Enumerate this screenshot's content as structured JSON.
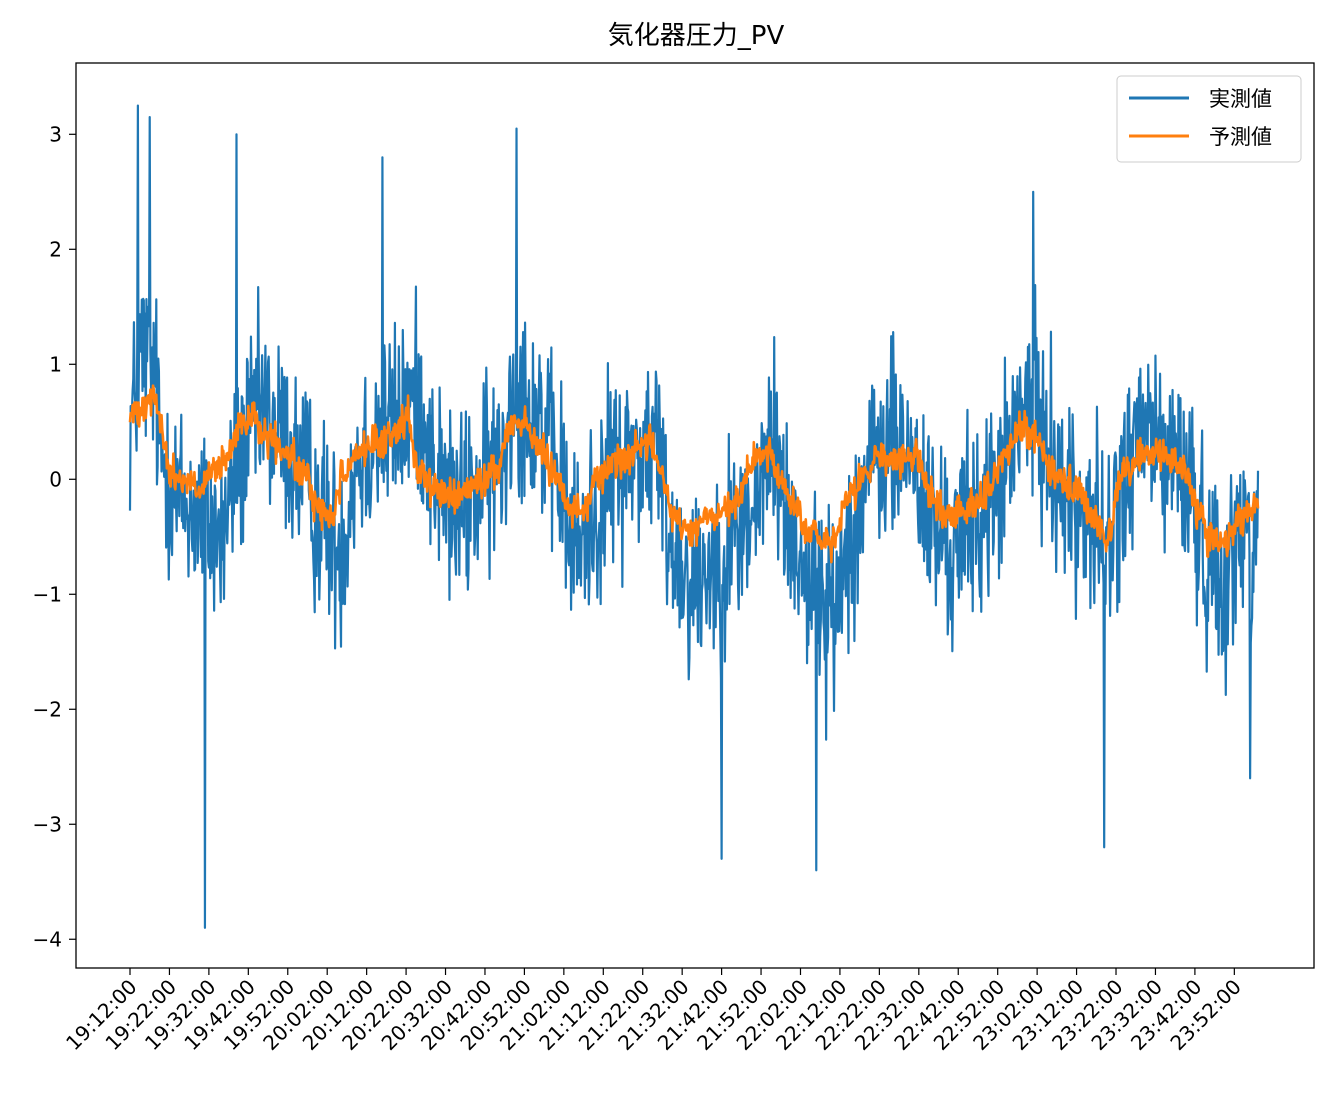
{
  "chart_data": {
    "type": "line",
    "title": "気化器圧力_PV",
    "xlabel": "",
    "ylabel": "",
    "x_range": [
      "19:12:00",
      "23:58:00"
    ],
    "sample_interval_seconds": 10,
    "ylim": [
      -4.25,
      3.62
    ],
    "yticks": [
      3,
      2,
      1,
      0,
      -1,
      -2,
      -3,
      -4
    ],
    "ytick_labels": [
      "3",
      "2",
      "1",
      "0",
      "−1",
      "−2",
      "−3",
      "−4"
    ],
    "xtick_labels": [
      "19:12:00",
      "19:22:00",
      "19:32:00",
      "19:42:00",
      "19:52:00",
      "20:02:00",
      "20:12:00",
      "20:22:00",
      "20:32:00",
      "20:42:00",
      "20:52:00",
      "21:02:00",
      "21:12:00",
      "21:22:00",
      "21:32:00",
      "21:42:00",
      "21:52:00",
      "22:02:00",
      "22:12:00",
      "22:22:00",
      "22:32:00",
      "22:42:00",
      "22:52:00",
      "23:02:00",
      "23:12:00",
      "23:22:00",
      "23:32:00",
      "23:42:00",
      "23:52:00"
    ],
    "grid": false,
    "legend_position": "top-right",
    "series": [
      {
        "name": "実測値",
        "color": "#1f77b4",
        "trend_points": [
          [
            "19:12:00",
            0.5
          ],
          [
            "19:15:00",
            1.1
          ],
          [
            "19:18:00",
            0.9
          ],
          [
            "19:20:00",
            0.2
          ],
          [
            "19:25:00",
            -0.2
          ],
          [
            "19:30:00",
            -0.3
          ],
          [
            "19:35:00",
            -0.5
          ],
          [
            "19:40:00",
            0.2
          ],
          [
            "19:45:00",
            0.6
          ],
          [
            "19:50:00",
            0.4
          ],
          [
            "19:55:00",
            0.1
          ],
          [
            "20:00:00",
            -0.3
          ],
          [
            "20:05:00",
            -0.6
          ],
          [
            "20:10:00",
            0.2
          ],
          [
            "20:15:00",
            0.4
          ],
          [
            "20:20:00",
            0.5
          ],
          [
            "20:25:00",
            0.7
          ],
          [
            "20:30:00",
            0.0
          ],
          [
            "20:35:00",
            -0.3
          ],
          [
            "20:40:00",
            -0.1
          ],
          [
            "20:45:00",
            0.1
          ],
          [
            "20:50:00",
            0.8
          ],
          [
            "20:55:00",
            0.6
          ],
          [
            "21:00:00",
            0.1
          ],
          [
            "21:05:00",
            -0.6
          ],
          [
            "21:10:00",
            -0.3
          ],
          [
            "21:15:00",
            0.1
          ],
          [
            "21:20:00",
            0.2
          ],
          [
            "21:25:00",
            0.3
          ],
          [
            "21:30:00",
            -0.6
          ],
          [
            "21:35:00",
            -0.9
          ],
          [
            "21:40:00",
            -0.7
          ],
          [
            "21:45:00",
            -0.5
          ],
          [
            "21:50:00",
            -0.3
          ],
          [
            "21:55:00",
            0.3
          ],
          [
            "22:00:00",
            -0.5
          ],
          [
            "22:05:00",
            -0.9
          ],
          [
            "22:10:00",
            -1.2
          ],
          [
            "22:15:00",
            -0.4
          ],
          [
            "22:20:00",
            0.1
          ],
          [
            "22:25:00",
            0.3
          ],
          [
            "22:30:00",
            0.2
          ],
          [
            "22:35:00",
            -0.4
          ],
          [
            "22:40:00",
            -0.6
          ],
          [
            "22:45:00",
            -0.4
          ],
          [
            "22:50:00",
            -0.2
          ],
          [
            "22:55:00",
            0.2
          ],
          [
            "23:00:00",
            0.7
          ],
          [
            "23:05:00",
            0.3
          ],
          [
            "23:10:00",
            -0.2
          ],
          [
            "23:15:00",
            -0.3
          ],
          [
            "23:20:00",
            -0.6
          ],
          [
            "23:25:00",
            0.1
          ],
          [
            "23:30:00",
            0.4
          ],
          [
            "23:35:00",
            0.2
          ],
          [
            "23:40:00",
            0.0
          ],
          [
            "23:45:00",
            -0.7
          ],
          [
            "23:50:00",
            -0.8
          ],
          [
            "23:55:00",
            -0.4
          ],
          [
            "23:58:00",
            -0.5
          ]
        ],
        "noise_amplitude": 0.9,
        "extremes": [
          [
            "19:14:00",
            3.25
          ],
          [
            "19:17:00",
            3.15
          ],
          [
            "19:31:00",
            -3.9
          ],
          [
            "19:39:00",
            3.0
          ],
          [
            "20:16:00",
            2.8
          ],
          [
            "20:50:00",
            3.05
          ],
          [
            "21:42:00",
            -3.3
          ],
          [
            "22:06:00",
            -3.4
          ],
          [
            "23:01:00",
            2.5
          ],
          [
            "23:19:00",
            -3.2
          ],
          [
            "23:56:00",
            -2.6
          ]
        ]
      },
      {
        "name": "予測値",
        "color": "#ff7f0e",
        "trend_points": [
          [
            "19:12:00",
            0.55
          ],
          [
            "19:15:00",
            0.65
          ],
          [
            "19:18:00",
            0.75
          ],
          [
            "19:20:00",
            0.45
          ],
          [
            "19:22:00",
            0.05
          ],
          [
            "19:26:00",
            0.0
          ],
          [
            "19:30:00",
            -0.1
          ],
          [
            "19:33:00",
            0.05
          ],
          [
            "19:37:00",
            0.2
          ],
          [
            "19:40:00",
            0.45
          ],
          [
            "19:43:00",
            0.55
          ],
          [
            "19:47:00",
            0.35
          ],
          [
            "19:52:00",
            0.2
          ],
          [
            "19:56:00",
            0.05
          ],
          [
            "20:00:00",
            -0.25
          ],
          [
            "20:03:00",
            -0.35
          ],
          [
            "20:06:00",
            0.05
          ],
          [
            "20:10:00",
            0.25
          ],
          [
            "20:15:00",
            0.3
          ],
          [
            "20:19:00",
            0.4
          ],
          [
            "20:22:00",
            0.55
          ],
          [
            "20:25:00",
            0.1
          ],
          [
            "20:30:00",
            -0.1
          ],
          [
            "20:35:00",
            -0.15
          ],
          [
            "20:40:00",
            -0.05
          ],
          [
            "20:45:00",
            0.1
          ],
          [
            "20:49:00",
            0.5
          ],
          [
            "20:52:00",
            0.5
          ],
          [
            "20:56:00",
            0.25
          ],
          [
            "21:00:00",
            0.05
          ],
          [
            "21:04:00",
            -0.25
          ],
          [
            "21:07:00",
            -0.3
          ],
          [
            "21:10:00",
            0.0
          ],
          [
            "21:15:00",
            0.15
          ],
          [
            "21:20:00",
            0.25
          ],
          [
            "21:24:00",
            0.3
          ],
          [
            "21:27:00",
            0.05
          ],
          [
            "21:30:00",
            -0.35
          ],
          [
            "21:34:00",
            -0.45
          ],
          [
            "21:38:00",
            -0.35
          ],
          [
            "21:42:00",
            -0.3
          ],
          [
            "21:46:00",
            -0.2
          ],
          [
            "21:50:00",
            0.15
          ],
          [
            "21:53:00",
            0.25
          ],
          [
            "21:57:00",
            0.0
          ],
          [
            "22:00:00",
            -0.2
          ],
          [
            "22:04:00",
            -0.45
          ],
          [
            "22:08:00",
            -0.55
          ],
          [
            "22:10:00",
            -0.6
          ],
          [
            "22:14:00",
            -0.2
          ],
          [
            "22:18:00",
            0.05
          ],
          [
            "22:22:00",
            0.2
          ],
          [
            "22:26:00",
            0.15
          ],
          [
            "22:31:00",
            0.2
          ],
          [
            "22:35:00",
            -0.1
          ],
          [
            "22:39:00",
            -0.35
          ],
          [
            "22:42:00",
            -0.25
          ],
          [
            "22:46:00",
            -0.2
          ],
          [
            "22:50:00",
            -0.05
          ],
          [
            "22:54:00",
            0.2
          ],
          [
            "22:58:00",
            0.45
          ],
          [
            "23:01:00",
            0.4
          ],
          [
            "23:05:00",
            0.15
          ],
          [
            "23:09:00",
            -0.05
          ],
          [
            "23:13:00",
            -0.15
          ],
          [
            "23:17:00",
            -0.4
          ],
          [
            "23:20:00",
            -0.45
          ],
          [
            "23:24:00",
            0.05
          ],
          [
            "23:28:00",
            0.2
          ],
          [
            "23:32:00",
            0.25
          ],
          [
            "23:36:00",
            0.15
          ],
          [
            "23:40:00",
            0.05
          ],
          [
            "23:43:00",
            -0.3
          ],
          [
            "23:46:00",
            -0.55
          ],
          [
            "23:49:00",
            -0.6
          ],
          [
            "23:53:00",
            -0.35
          ],
          [
            "23:58:00",
            -0.2
          ]
        ],
        "noise_amplitude": 0.16
      }
    ]
  }
}
